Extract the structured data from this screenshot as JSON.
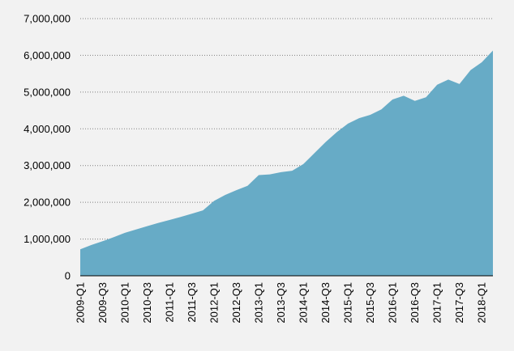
{
  "chart_data": {
    "type": "area",
    "title": "",
    "xlabel": "",
    "ylabel": "",
    "ylim": [
      0,
      7000000
    ],
    "grid": true,
    "legend": "none",
    "color": "#67abc6",
    "y_ticks": [
      {
        "value": 0,
        "label": "0"
      },
      {
        "value": 1000000,
        "label": "1,000,000"
      },
      {
        "value": 2000000,
        "label": "2,000,000"
      },
      {
        "value": 3000000,
        "label": "3,000,000"
      },
      {
        "value": 4000000,
        "label": "4,000,000"
      },
      {
        "value": 5000000,
        "label": "5,000,000"
      },
      {
        "value": 6000000,
        "label": "6,000,000"
      },
      {
        "value": 7000000,
        "label": "7,000,000"
      }
    ],
    "x_tick_labels": [
      "2009-Q1",
      "2009-Q3",
      "2010-Q1",
      "2010-Q3",
      "2011-Q1",
      "2011-Q3",
      "2012-Q1",
      "2012-Q3",
      "2013-Q1",
      "2013-Q3",
      "2014-Q1",
      "2014-Q3",
      "2015-Q1",
      "2015-Q3",
      "2016-Q1",
      "2016-Q3",
      "2017-Q1",
      "2017-Q3",
      "2018-Q1"
    ],
    "categories": [
      "2009-Q1",
      "2009-Q2",
      "2009-Q3",
      "2009-Q4",
      "2010-Q1",
      "2010-Q2",
      "2010-Q3",
      "2010-Q4",
      "2011-Q1",
      "2011-Q2",
      "2011-Q3",
      "2011-Q4",
      "2012-Q1",
      "2012-Q2",
      "2012-Q3",
      "2012-Q4",
      "2013-Q1",
      "2013-Q2",
      "2013-Q3",
      "2013-Q4",
      "2014-Q1",
      "2014-Q2",
      "2014-Q3",
      "2014-Q4",
      "2015-Q1",
      "2015-Q2",
      "2015-Q3",
      "2015-Q4",
      "2016-Q1",
      "2016-Q2",
      "2016-Q3",
      "2016-Q4",
      "2017-Q1",
      "2017-Q2",
      "2017-Q3",
      "2017-Q4",
      "2018-Q1",
      "2018-Q2"
    ],
    "values": [
      720000,
      840000,
      940000,
      1050000,
      1170000,
      1260000,
      1350000,
      1440000,
      1520000,
      1600000,
      1690000,
      1780000,
      2040000,
      2200000,
      2330000,
      2450000,
      2740000,
      2760000,
      2820000,
      2860000,
      3040000,
      3340000,
      3640000,
      3910000,
      4140000,
      4290000,
      4380000,
      4530000,
      4800000,
      4900000,
      4760000,
      4860000,
      5200000,
      5340000,
      5220000,
      5600000,
      5810000,
      6130000
    ]
  }
}
